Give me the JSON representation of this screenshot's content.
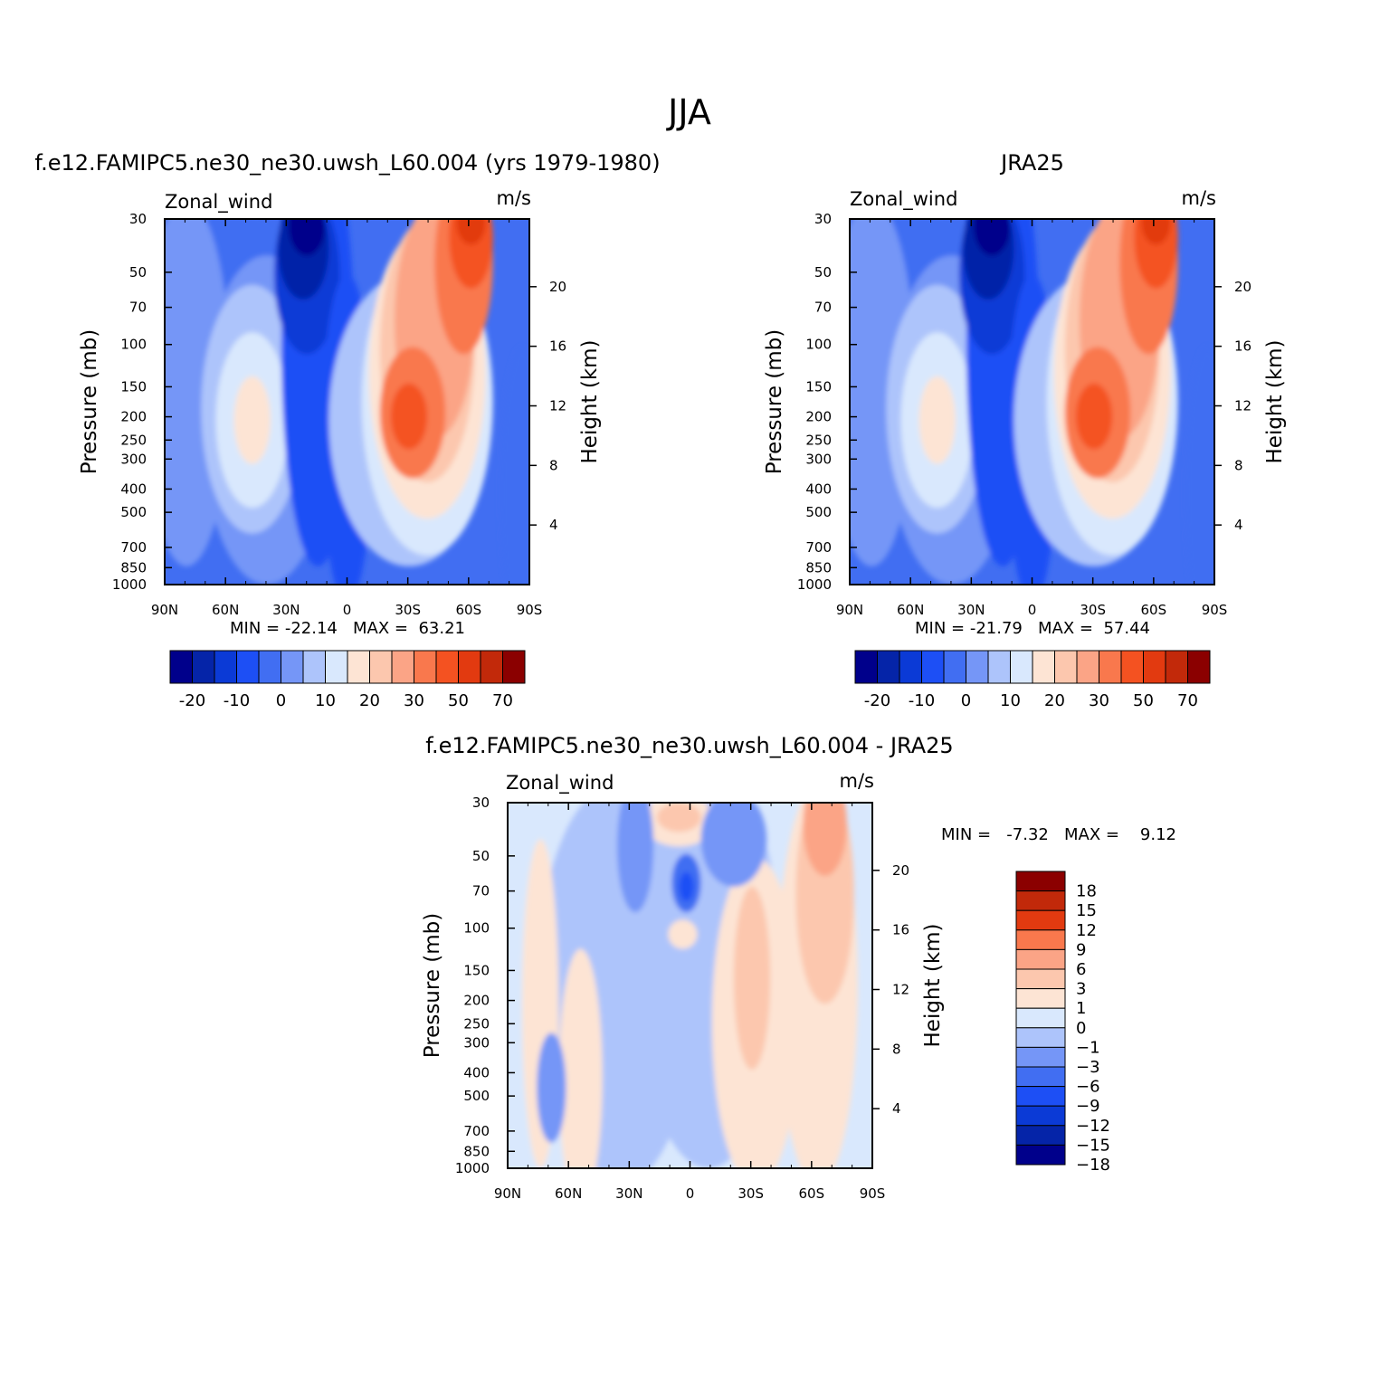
{
  "figure_title": "JJA",
  "units_label": "m/s",
  "variable_label": "Zonal_wind",
  "colors": {
    "blue_ramp": [
      "#00008b",
      "#0524a8",
      "#0b3ad6",
      "#1d4ff5",
      "#416ef2",
      "#7596f7",
      "#adc4fb",
      "#d9e8fd"
    ],
    "red_ramp": [
      "#fde4d4",
      "#fcc7ae",
      "#fba486",
      "#f9784d",
      "#f45221",
      "#e23a10",
      "#c2290a",
      "#8b0000"
    ]
  },
  "chart_data": [
    {
      "id": "model",
      "type": "heatmap",
      "title": "f.e12.FAMIPC5.ne30_ne30.uwsh_L60.004 (yrs 1979-1980)",
      "variable": "Zonal_wind",
      "units": "m/s",
      "xlabel": "",
      "ylabel": "Pressure (mb)",
      "y2label": "Height (km)",
      "xticks": [
        "90N",
        "60N",
        "30N",
        "0",
        "30S",
        "60S",
        "90S"
      ],
      "yticks": [
        "30",
        "50",
        "70",
        "100",
        "150",
        "200",
        "250",
        "300",
        "400",
        "500",
        "700",
        "850",
        "1000"
      ],
      "y2ticks": [
        "20",
        "16",
        "12",
        "8",
        "4"
      ],
      "stats": "MIN = -22.14   MAX =  63.21",
      "colorbar_labels": [
        "-20",
        "-10",
        "0",
        "10",
        "20",
        "30",
        "50",
        "70"
      ]
    },
    {
      "id": "obs",
      "type": "heatmap",
      "title": "JRA25",
      "variable": "Zonal_wind",
      "units": "m/s",
      "xlabel": "",
      "ylabel": "Pressure (mb)",
      "y2label": "Height (km)",
      "xticks": [
        "90N",
        "60N",
        "30N",
        "0",
        "30S",
        "60S",
        "90S"
      ],
      "yticks": [
        "30",
        "50",
        "70",
        "100",
        "150",
        "200",
        "250",
        "300",
        "400",
        "500",
        "700",
        "850",
        "1000"
      ],
      "y2ticks": [
        "20",
        "16",
        "12",
        "8",
        "4"
      ],
      "stats": "MIN = -21.79   MAX =  57.44",
      "colorbar_labels": [
        "-20",
        "-10",
        "0",
        "10",
        "20",
        "30",
        "50",
        "70"
      ]
    },
    {
      "id": "diff",
      "type": "heatmap",
      "title": "f.e12.FAMIPC5.ne30_ne30.uwsh_L60.004 - JRA25",
      "variable": "Zonal_wind",
      "units": "m/s",
      "xlabel": "",
      "ylabel": "Pressure (mb)",
      "y2label": "Height (km)",
      "xticks": [
        "90N",
        "60N",
        "30N",
        "0",
        "30S",
        "60S",
        "90S"
      ],
      "yticks": [
        "30",
        "50",
        "70",
        "100",
        "150",
        "200",
        "250",
        "300",
        "400",
        "500",
        "700",
        "850",
        "1000"
      ],
      "y2ticks": [
        "20",
        "16",
        "12",
        "8",
        "4"
      ],
      "stats": "MIN =   -7.32   MAX =    9.12",
      "colorbar_labels": [
        "18",
        "15",
        "12",
        "9",
        "6",
        "3",
        "1",
        "0",
        "−1",
        "−3",
        "−6",
        "−9",
        "−12",
        "−15",
        "−18"
      ]
    }
  ]
}
